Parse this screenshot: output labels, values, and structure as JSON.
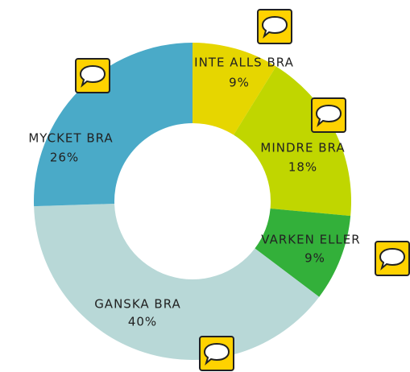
{
  "chart_data": {
    "type": "donut",
    "categories": [
      "INTE ALLS BRA",
      "MINDRE BRA",
      "VARKEN ELLER",
      "GANSKA BRA",
      "MYCKET BRA"
    ],
    "values": [
      9,
      18,
      9,
      40,
      26
    ],
    "value_labels": [
      "9%",
      "18%",
      "9%",
      "40%",
      "26%"
    ],
    "colors": [
      "#e6d600",
      "#c0d600",
      "#33b03a",
      "#b8d8d7",
      "#4aaac8"
    ]
  }
}
